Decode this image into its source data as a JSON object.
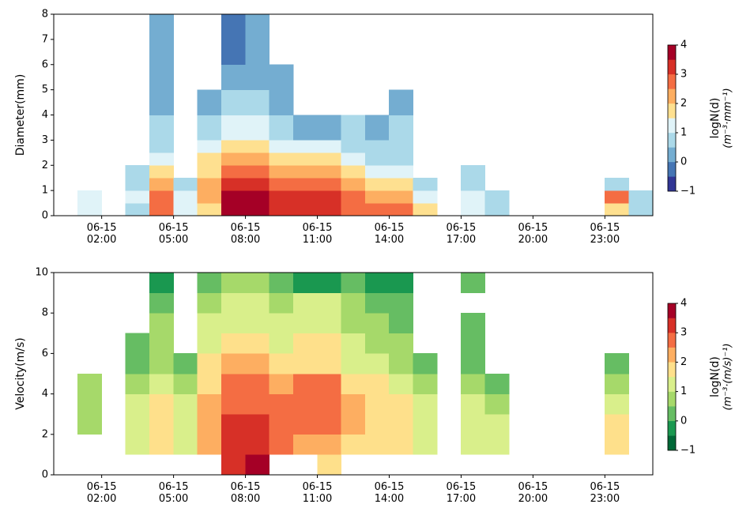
{
  "chart_data": [
    {
      "type": "heatmap",
      "ylabel": "Diameter(mm)",
      "x_bins": [
        0,
        1,
        2,
        3,
        4,
        5,
        6,
        7,
        8,
        9,
        10,
        11,
        12,
        13,
        14,
        15,
        16,
        17,
        18,
        19,
        20,
        21,
        22,
        23,
        24,
        25
      ],
      "y_bins": [
        0,
        0.5,
        1,
        1.5,
        2,
        2.5,
        3,
        4,
        5,
        6,
        8
      ],
      "z": [
        [
          null,
          1,
          null,
          0.5,
          2.5,
          1,
          1.5,
          4,
          3.5,
          3,
          3,
          3,
          2.5,
          2.5,
          2.5,
          1.5,
          null,
          1,
          0.5,
          null,
          null,
          null,
          null,
          1.5,
          0.5
        ],
        [
          null,
          1,
          null,
          1,
          2.5,
          1,
          2,
          3.5,
          3.5,
          3,
          3,
          3,
          2.5,
          2,
          2,
          1,
          null,
          1,
          0.5,
          null,
          null,
          null,
          null,
          2.5,
          0.5
        ],
        [
          null,
          null,
          null,
          0.5,
          2,
          0.5,
          2,
          3,
          3,
          2.5,
          2.5,
          2.5,
          2,
          1.5,
          1.5,
          0.5,
          null,
          0.5,
          null,
          null,
          null,
          null,
          null,
          0.5,
          null
        ],
        [
          null,
          null,
          null,
          0.5,
          1.5,
          null,
          1.5,
          2.5,
          2.5,
          2,
          2,
          2,
          1.5,
          1,
          1,
          null,
          null,
          0.5,
          null,
          null,
          null,
          null,
          null,
          null,
          null
        ],
        [
          null,
          null,
          null,
          null,
          1,
          null,
          1.5,
          2,
          2,
          1.5,
          1.5,
          1.5,
          1,
          0.5,
          0.5,
          null,
          null,
          null,
          null,
          null,
          null,
          null,
          null,
          null,
          null
        ],
        [
          null,
          null,
          null,
          null,
          0.5,
          null,
          1,
          1.5,
          1.5,
          1,
          1,
          1,
          0.5,
          0.5,
          0.5,
          null,
          null,
          null,
          null,
          null,
          null,
          null,
          null,
          null,
          null
        ],
        [
          null,
          null,
          null,
          null,
          0.5,
          null,
          0.5,
          1,
          1,
          0.5,
          0,
          0,
          0.5,
          0,
          0.5,
          null,
          null,
          null,
          null,
          null,
          null,
          null,
          null,
          null,
          null
        ],
        [
          null,
          null,
          null,
          null,
          0,
          null,
          0,
          0.5,
          0.5,
          0,
          null,
          null,
          null,
          null,
          0,
          null,
          null,
          null,
          null,
          null,
          null,
          null,
          null,
          null,
          null
        ],
        [
          null,
          null,
          null,
          null,
          0,
          null,
          null,
          0,
          0,
          0,
          null,
          null,
          null,
          null,
          null,
          null,
          null,
          null,
          null,
          null,
          null,
          null,
          null,
          null,
          null
        ],
        [
          null,
          null,
          null,
          null,
          0,
          null,
          null,
          -0.5,
          0,
          null,
          null,
          null,
          null,
          null,
          null,
          null,
          null,
          null,
          null,
          null,
          null,
          null,
          null,
          null,
          null
        ]
      ],
      "xlim": [
        0,
        25
      ],
      "xticks": [
        {
          "value": 2,
          "label": "06-15\n02:00"
        },
        {
          "value": 5,
          "label": "06-15\n05:00"
        },
        {
          "value": 8,
          "label": "06-15\n08:00"
        },
        {
          "value": 11,
          "label": "06-15\n11:00"
        },
        {
          "value": 14,
          "label": "06-15\n14:00"
        },
        {
          "value": 17,
          "label": "06-15\n17:00"
        },
        {
          "value": 20,
          "label": "06-15\n20:00"
        },
        {
          "value": 23,
          "label": "06-15\n23:00"
        }
      ],
      "ylim": [
        0,
        8
      ],
      "yticks": [
        0,
        1,
        2,
        3,
        4,
        5,
        6,
        7,
        8
      ],
      "colorbar": {
        "label": "logN(d)",
        "unit": "(m⁻³·mm⁻¹)",
        "lim": [
          -1,
          4
        ],
        "step": 0.5,
        "ticks": [
          {
            "value": -1,
            "label": "−1"
          },
          0,
          1,
          2,
          3,
          4
        ],
        "colors": [
          "#313695",
          "#4575b4",
          "#74add1",
          "#abd9e9",
          "#e0f3f8",
          "#fee090",
          "#fdae61",
          "#f46d43",
          "#d73027",
          "#a50026"
        ]
      }
    },
    {
      "type": "heatmap",
      "ylabel": "Velocity(m/s)",
      "x_bins": [
        0,
        1,
        2,
        3,
        4,
        5,
        6,
        7,
        8,
        9,
        10,
        11,
        12,
        13,
        14,
        15,
        16,
        17,
        18,
        19,
        20,
        21,
        22,
        23,
        24,
        25
      ],
      "y_bins": [
        0,
        1,
        2,
        3,
        4,
        5,
        6,
        7,
        8,
        9,
        10
      ],
      "z": [
        [
          null,
          null,
          null,
          null,
          null,
          null,
          null,
          3,
          3.5,
          null,
          null,
          1.5,
          null,
          null,
          null,
          null,
          null,
          null,
          null,
          null,
          null,
          null,
          null,
          null,
          null
        ],
        [
          null,
          null,
          null,
          1,
          1.5,
          1,
          2,
          3,
          3,
          2.5,
          2,
          2,
          1.5,
          1.5,
          1.5,
          1,
          null,
          1,
          1,
          null,
          null,
          null,
          null,
          1.5,
          null
        ],
        [
          null,
          0.5,
          null,
          1,
          1.5,
          1,
          2,
          3,
          3,
          2.5,
          2.5,
          2.5,
          2,
          1.5,
          1.5,
          1,
          null,
          1,
          1,
          null,
          null,
          null,
          null,
          1.5,
          null
        ],
        [
          null,
          0.5,
          null,
          1,
          1.5,
          1,
          2,
          2.5,
          2.5,
          2.5,
          2.5,
          2.5,
          2,
          1.5,
          1.5,
          1,
          null,
          1,
          0.5,
          null,
          null,
          null,
          null,
          1,
          null
        ],
        [
          null,
          0.5,
          null,
          0.5,
          1,
          0.5,
          1.5,
          2.5,
          2.5,
          2,
          2.5,
          2.5,
          1.5,
          1.5,
          1,
          0.5,
          null,
          0.5,
          0,
          null,
          null,
          null,
          null,
          0.5,
          null
        ],
        [
          null,
          null,
          null,
          0,
          0.5,
          0,
          1.5,
          2,
          2,
          1.5,
          1.5,
          1.5,
          1,
          1,
          0.5,
          0,
          null,
          0,
          null,
          null,
          null,
          null,
          null,
          0,
          null
        ],
        [
          null,
          null,
          null,
          0,
          0.5,
          null,
          1,
          1.5,
          1.5,
          1,
          1.5,
          1.5,
          1,
          0.5,
          0.5,
          null,
          null,
          0,
          null,
          null,
          null,
          null,
          null,
          null,
          null
        ],
        [
          null,
          null,
          null,
          null,
          0.5,
          null,
          1,
          1,
          1,
          1,
          1,
          1,
          0.5,
          0.5,
          0,
          null,
          null,
          0,
          null,
          null,
          null,
          null,
          null,
          null,
          null
        ],
        [
          null,
          null,
          null,
          null,
          0,
          null,
          0.5,
          1,
          1,
          0.5,
          1,
          1,
          0.5,
          0,
          0,
          null,
          null,
          null,
          null,
          null,
          null,
          null,
          null,
          null,
          null
        ],
        [
          null,
          null,
          null,
          null,
          -0.5,
          null,
          0,
          0.5,
          0.5,
          0,
          -0.5,
          -0.5,
          0,
          -0.5,
          -0.5,
          null,
          null,
          0,
          null,
          null,
          null,
          null,
          null,
          null,
          null
        ]
      ],
      "xlim": [
        0,
        25
      ],
      "xticks": [
        {
          "value": 2,
          "label": "06-15\n02:00"
        },
        {
          "value": 5,
          "label": "06-15\n05:00"
        },
        {
          "value": 8,
          "label": "06-15\n08:00"
        },
        {
          "value": 11,
          "label": "06-15\n11:00"
        },
        {
          "value": 14,
          "label": "06-15\n14:00"
        },
        {
          "value": 17,
          "label": "06-15\n17:00"
        },
        {
          "value": 20,
          "label": "06-15\n20:00"
        },
        {
          "value": 23,
          "label": "06-15\n23:00"
        }
      ],
      "ylim": [
        0,
        10
      ],
      "yticks": [
        0,
        2,
        4,
        6,
        8,
        10
      ],
      "colorbar": {
        "label": "logN(d)",
        "unit": "(m⁻³·(m/s)⁻¹)",
        "lim": [
          -1,
          4
        ],
        "step": 0.5,
        "ticks": [
          {
            "value": -1,
            "label": "−1"
          },
          0,
          1,
          2,
          3,
          4
        ],
        "colors": [
          "#006837",
          "#1a9850",
          "#66bd63",
          "#a6d96a",
          "#d9ef8b",
          "#fee08b",
          "#fdae61",
          "#f46d43",
          "#d73027",
          "#a50026"
        ]
      }
    }
  ]
}
